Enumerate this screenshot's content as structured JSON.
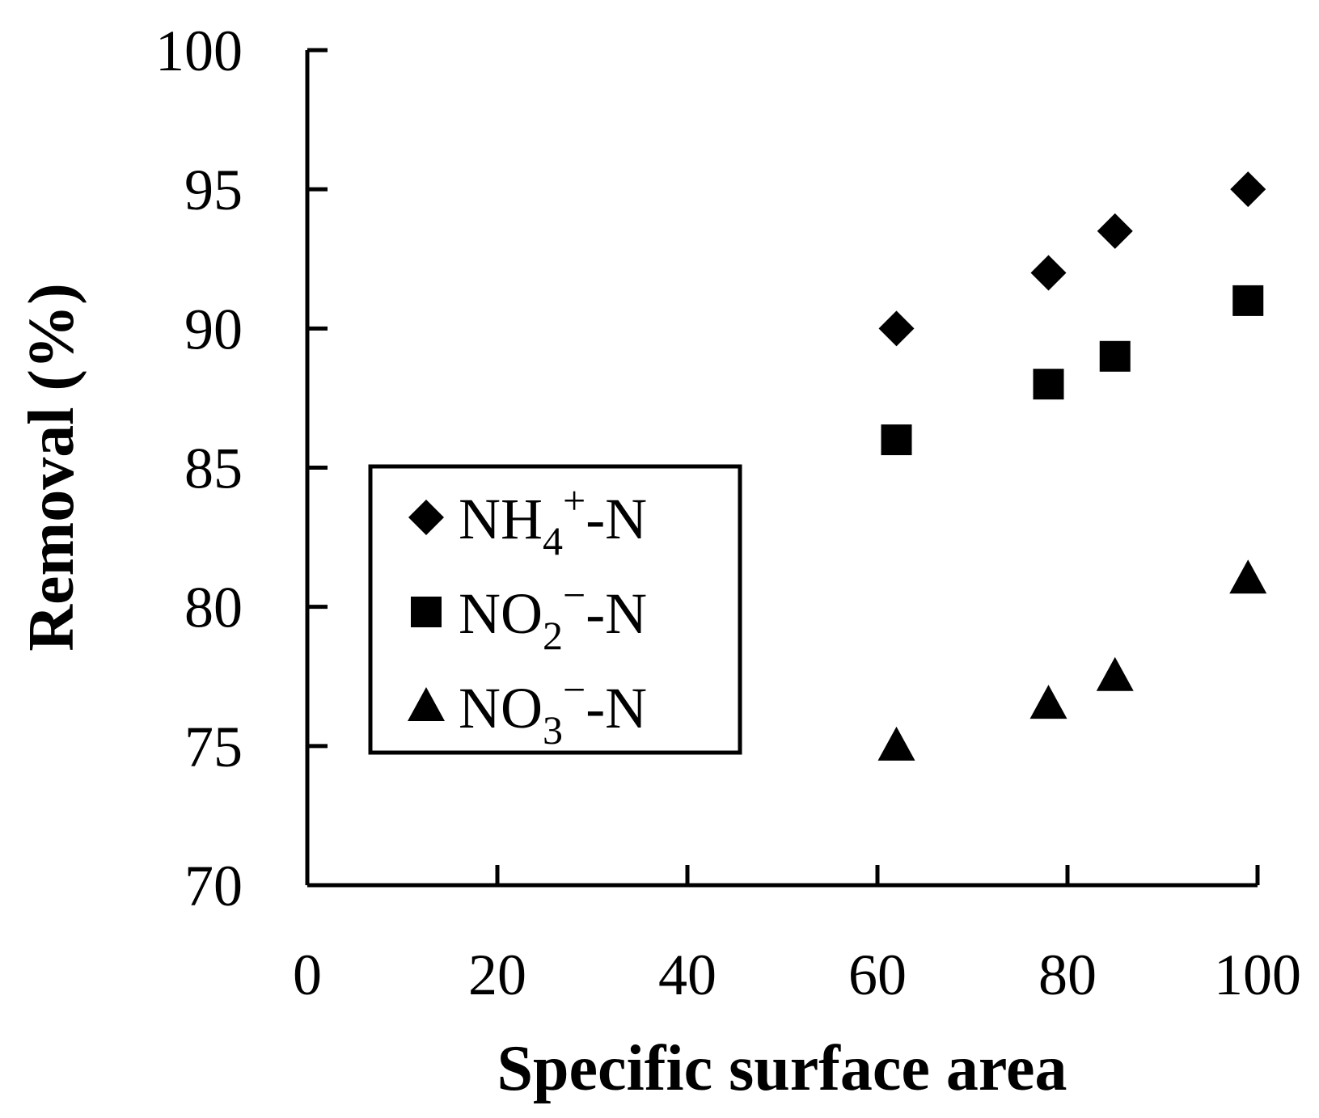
{
  "chart_data": {
    "type": "scatter",
    "title": "",
    "xlabel": "Specific surface area",
    "ylabel": "Removal (%)",
    "xlim": [
      0,
      100
    ],
    "ylim": [
      70,
      100
    ],
    "x_ticks": [
      0,
      20,
      40,
      60,
      80,
      100
    ],
    "y_ticks": [
      70,
      75,
      80,
      85,
      90,
      95,
      100
    ],
    "grid": false,
    "legend_position": "left-middle",
    "color": "#000000",
    "series": [
      {
        "name": "NH4+-N",
        "label_main": "NH",
        "label_sub": "4",
        "label_sup": "+",
        "label_tail": "-N",
        "marker": "diamond",
        "x": [
          62,
          78,
          85,
          99
        ],
        "y": [
          90,
          92,
          93.5,
          95
        ]
      },
      {
        "name": "NO2−-N",
        "label_main": "NO",
        "label_sub": "2",
        "label_sup": "−",
        "label_tail": "-N",
        "marker": "square",
        "x": [
          62,
          78,
          85,
          99
        ],
        "y": [
          86,
          88,
          89,
          91
        ]
      },
      {
        "name": "NO3−-N",
        "label_main": "NO",
        "label_sub": "3",
        "label_sup": "−",
        "label_tail": "-N",
        "marker": "triangle",
        "x": [
          62,
          78,
          85,
          99
        ],
        "y": [
          75,
          76.5,
          77.5,
          81
        ]
      }
    ]
  }
}
